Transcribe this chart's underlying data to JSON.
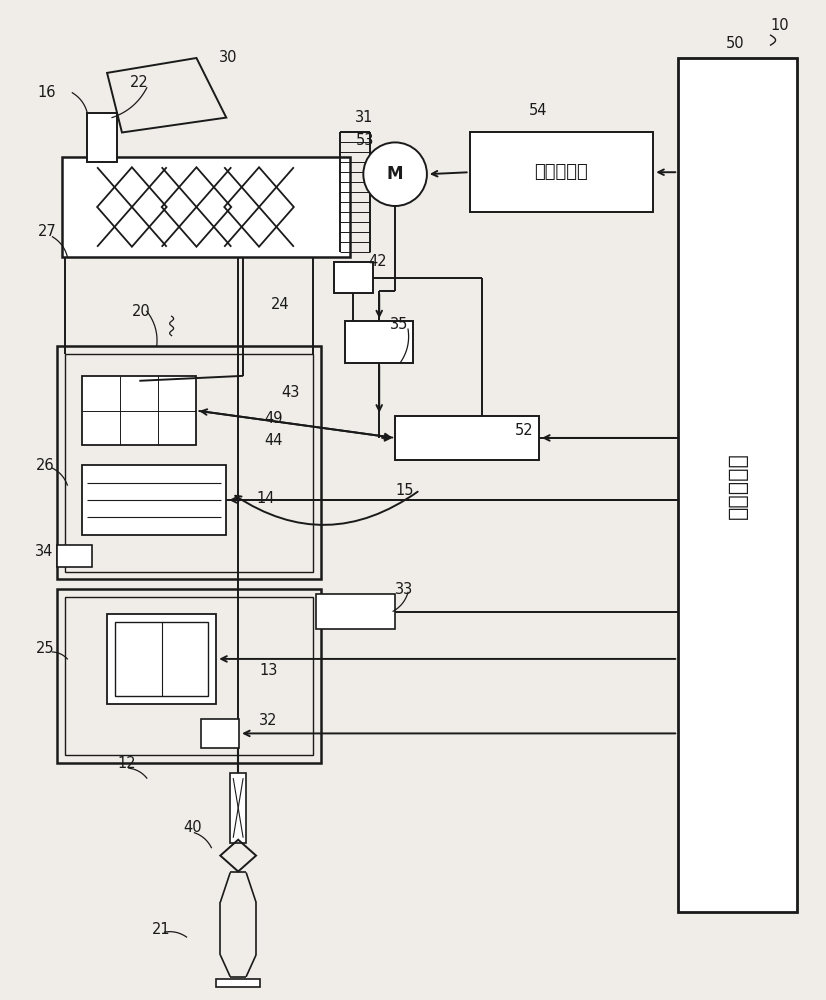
{
  "bg_color": "#f0ede8",
  "line_color": "#1a1a1a",
  "lw": 1.4,
  "motor_box_label": "电机控制部",
  "unit_box_label": "单元控制部",
  "motor_label": "M",
  "figsize": [
    8.26,
    10.0
  ],
  "dpi": 100
}
